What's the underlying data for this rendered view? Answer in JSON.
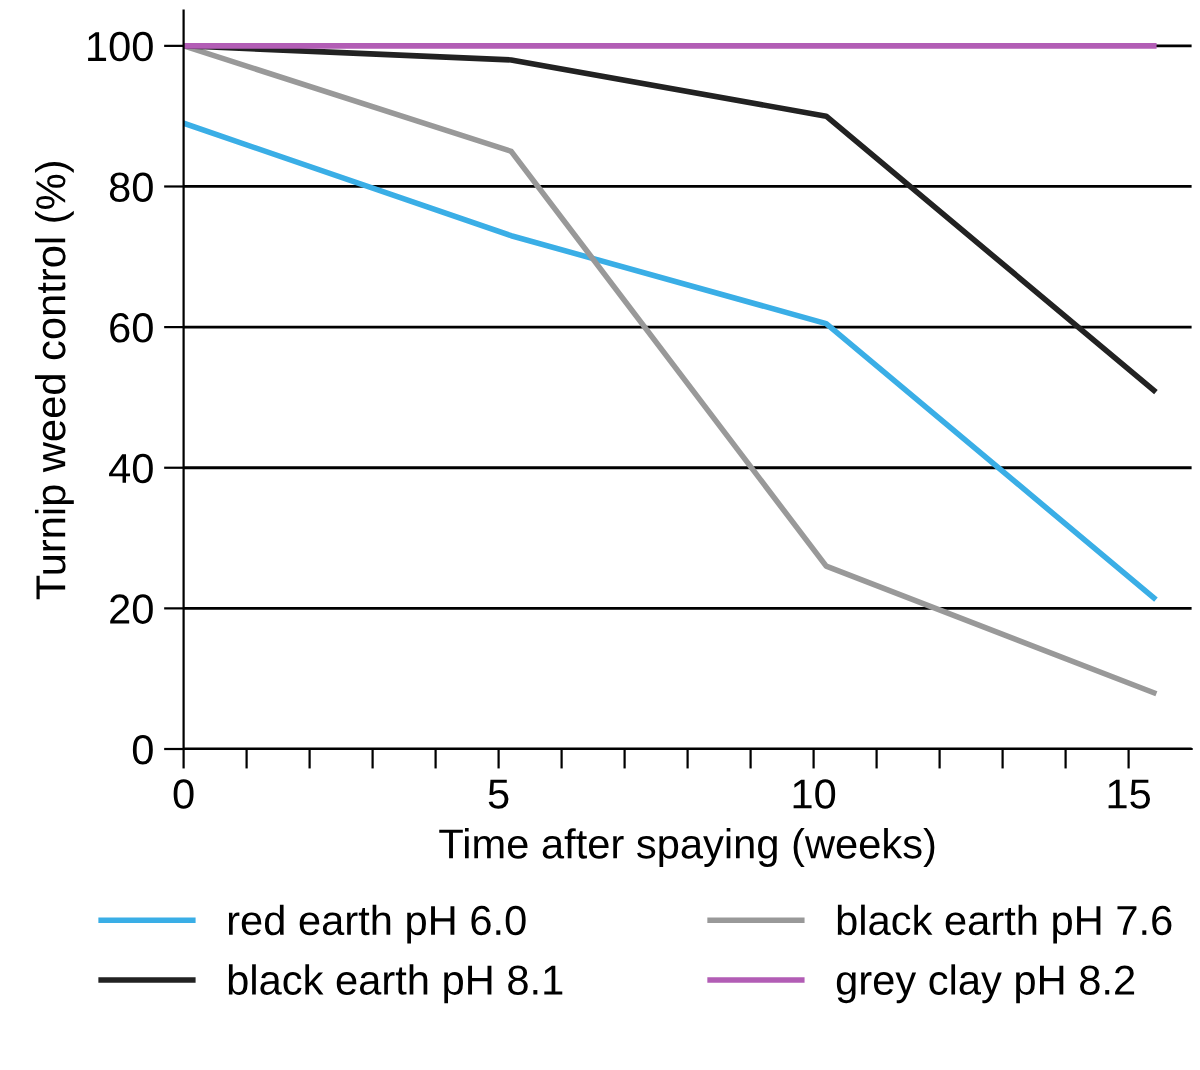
{
  "chart_data": {
    "type": "line",
    "xlabel": "Time after spaying (weeks)",
    "ylabel": "Turnip weed control (%)",
    "xlim": [
      0,
      16
    ],
    "ylim": [
      0,
      105
    ],
    "xticks": [
      0,
      {
        "value": 1,
        "label": null
      },
      {
        "value": 2,
        "label": null
      },
      {
        "value": 3,
        "label": null
      },
      {
        "value": 4,
        "label": null
      },
      5,
      {
        "value": 6,
        "label": null
      },
      {
        "value": 7,
        "label": null
      },
      {
        "value": 8,
        "label": null
      },
      {
        "value": 9,
        "label": null
      },
      10,
      {
        "value": 11,
        "label": null
      },
      {
        "value": 12,
        "label": null
      },
      {
        "value": 13,
        "label": null
      },
      {
        "value": 14,
        "label": null
      },
      15
    ],
    "yticks": [
      0,
      20,
      40,
      60,
      80,
      100
    ],
    "grid": "y",
    "legend": "bottom",
    "marker": "none",
    "line_style": "solid",
    "series": [
      {
        "name": "red earth pH 6.0",
        "color": "#3aaee6",
        "x": [
          0,
          5.2,
          10.2,
          15.4
        ],
        "values": [
          89,
          73,
          60.5,
          21.5
        ]
      },
      {
        "name": "black earth pH 7.6",
        "color": "#999999",
        "x": [
          0,
          5.2,
          10.2,
          15.4
        ],
        "values": [
          100,
          85,
          26,
          8
        ]
      },
      {
        "name": "black earth pH 8.1",
        "color": "#222222",
        "x": [
          0,
          5.2,
          10.2,
          15.4
        ],
        "values": [
          100,
          98,
          90,
          51
        ]
      },
      {
        "name": "grey clay pH 8.2",
        "color": "#b25db5",
        "x": [
          0,
          15.4
        ],
        "values": [
          100,
          100
        ]
      }
    ]
  }
}
